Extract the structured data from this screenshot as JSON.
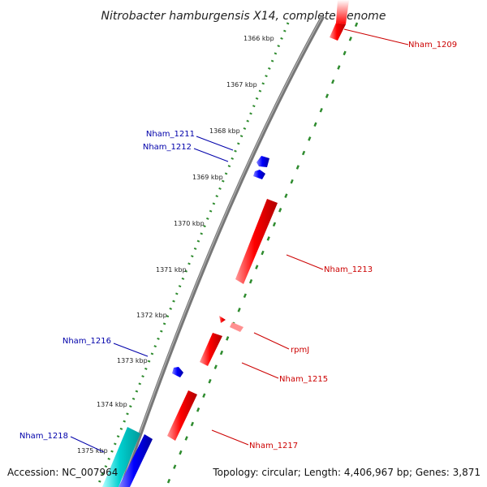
{
  "title": "Nitrobacter hamburgensis X14, complete genome",
  "footer": {
    "accession": "Accession: NC_007964",
    "topology": "Topology: circular; Length: 4,406,967 bp; Genes: 3,871"
  },
  "ticks": [
    "1366 kbp",
    "1367 kbp",
    "1368 kbp",
    "1369 kbp",
    "1370 kbp",
    "1371 kbp",
    "1372 kbp",
    "1373 kbp",
    "1374 kbp",
    "1375 kbp"
  ],
  "genes": [
    {
      "id": "nham-1209",
      "label": "Nham_1209",
      "color": "#cc0000"
    },
    {
      "id": "nham-1211",
      "label": "Nham_1211",
      "color": "#0000aa"
    },
    {
      "id": "nham-1212",
      "label": "Nham_1212",
      "color": "#0000aa"
    },
    {
      "id": "nham-1213",
      "label": "Nham_1213",
      "color": "#cc0000"
    },
    {
      "id": "rpmj",
      "label": "rpmJ",
      "color": "#cc0000"
    },
    {
      "id": "nham-1215",
      "label": "Nham_1215",
      "color": "#cc0000"
    },
    {
      "id": "nham-1216",
      "label": "Nham_1216",
      "color": "#0000aa"
    },
    {
      "id": "nham-1217",
      "label": "Nham_1217",
      "color": "#cc0000"
    },
    {
      "id": "nham-1218",
      "label": "Nham_1218",
      "color": "#0000aa"
    }
  ],
  "colors": {
    "forward_gene": "#ff0000",
    "reverse_gene": "#0000ff",
    "cyan_gene": "#00cccc",
    "backbone": "#777777",
    "tick_track": "#2e8b2e"
  }
}
